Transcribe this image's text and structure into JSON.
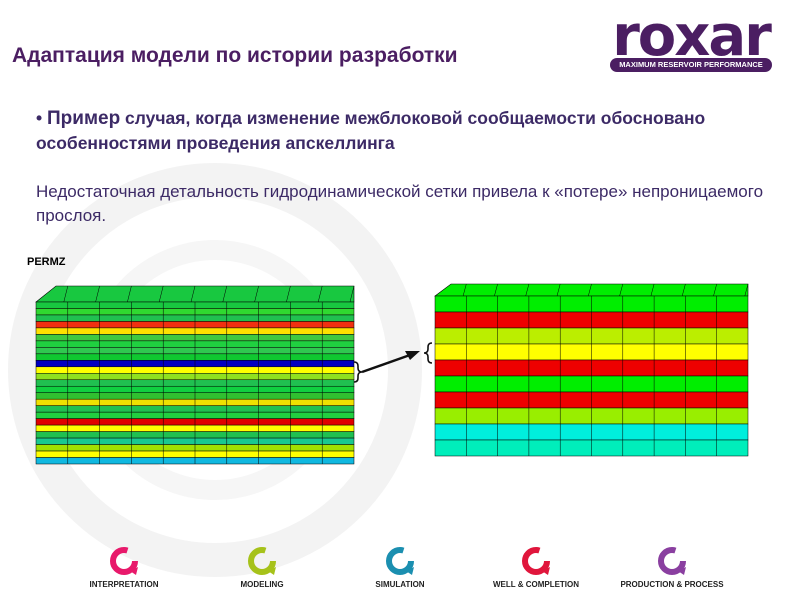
{
  "header": {
    "title": "Адаптация модели по истории разработки"
  },
  "logo": {
    "word": "roxar",
    "tagline": "MAXIMUM RESERVOIR PERFORMANCE"
  },
  "content": {
    "bullet_lead": "Пример",
    "bullet_rest": " случая, когда изменение межблоковой сообщаемости обосновано особенностями проведения апскеллинга",
    "note": "Недостаточная детальность гидродинамической  сетки привела к  «потере» непроницаемого  прослоя.",
    "grid_label": "PERMZ"
  },
  "grids": {
    "fine_layers": [
      "#18c840",
      "#30d830",
      "#20c050",
      "#f03010",
      "#ffe000",
      "#40c840",
      "#20d040",
      "#30c850",
      "#10c830",
      "#0000c0",
      "#ffff00",
      "#90e020",
      "#20c050",
      "#10d040",
      "#30c030",
      "#f0e000",
      "#20c050",
      "#20d040",
      "#e00000",
      "#ffff00",
      "#20c050",
      "#18c890",
      "#a0e000",
      "#ffff00",
      "#10b8e0"
    ],
    "coarse_layers": [
      "#00ee00",
      "#ee0000",
      "#bbee00",
      "#ffff00",
      "#ee0000",
      "#00ee00",
      "#ee0000",
      "#99ee00",
      "#00eedd",
      "#00eebb"
    ],
    "colors": {
      "outline": "#000000",
      "arrow": "#111111"
    }
  },
  "footer": {
    "items": [
      {
        "label": "INTERPRETATION",
        "color": "#e8196b",
        "icon": "interpretation-icon"
      },
      {
        "label": "MODELING",
        "color": "#a6c21a",
        "icon": "modeling-icon"
      },
      {
        "label": "SIMULATION",
        "color": "#1b8fb0",
        "icon": "simulation-icon"
      },
      {
        "label": "WELL & COMPLETION",
        "color": "#e0163c",
        "icon": "well-completion-icon"
      },
      {
        "label": "PRODUCTION & PROCESS",
        "color": "#8a3fa0",
        "icon": "production-process-icon"
      }
    ]
  }
}
